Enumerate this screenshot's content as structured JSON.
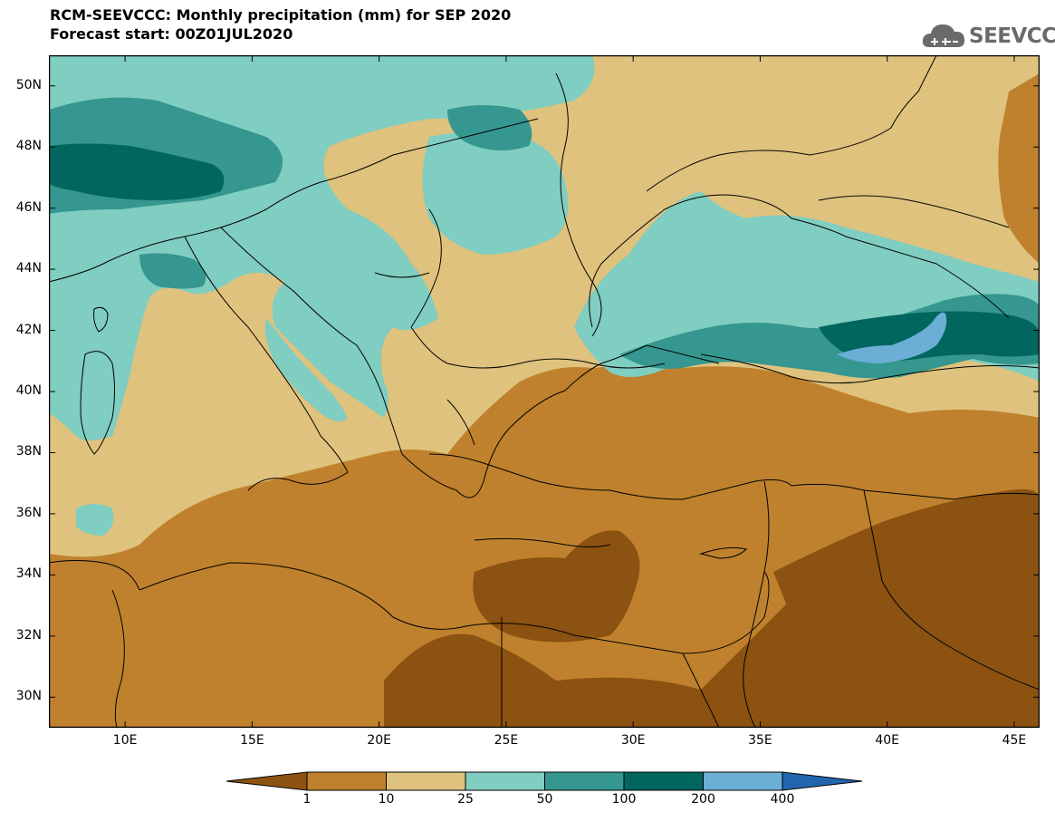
{
  "header": {
    "title_line1": "RCM-SEEVCCC: Monthly precipitation (mm) for SEP 2020",
    "title_line2": "Forecast start: 00Z01JUL2020"
  },
  "logo": {
    "text": "SEEVCCC",
    "icon": "cloud-icon"
  },
  "map": {
    "lat_labels": [
      "50N",
      "48N",
      "46N",
      "44N",
      "42N",
      "40N",
      "38N",
      "36N",
      "34N",
      "32N",
      "30N"
    ],
    "lon_labels": [
      "10E",
      "15E",
      "20E",
      "25E",
      "30E",
      "35E",
      "40E",
      "45E"
    ],
    "lon_range": [
      7,
      46
    ],
    "lat_range": [
      29,
      51
    ],
    "colors": {
      "lt1": "#8b5211",
      "c1_10": "#bf812d",
      "c10_25": "#dfc27d",
      "c25_50": "#80cdc1",
      "c50_100": "#35978f",
      "c100_200": "#01665e",
      "c200_400": "#6baed6",
      "gt400": "#2166ac",
      "border": "#000000"
    }
  },
  "colorbar": {
    "labels": [
      "1",
      "10",
      "25",
      "50",
      "100",
      "200",
      "400"
    ],
    "colors": [
      "#8b5211",
      "#bf812d",
      "#dfc27d",
      "#80cdc1",
      "#35978f",
      "#01665e",
      "#6baed6",
      "#2166ac"
    ]
  }
}
